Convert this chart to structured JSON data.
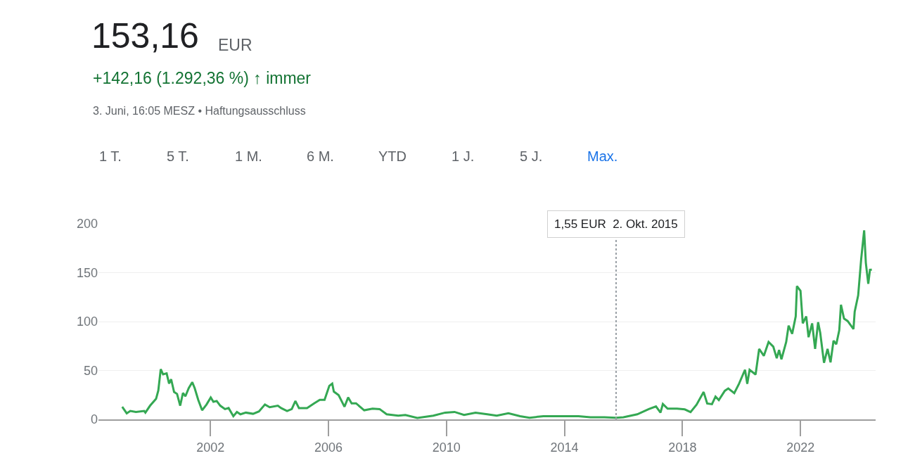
{
  "chart_data": {
    "type": "line",
    "title": "153,16",
    "annotations": [
      "EUR",
      "+142,16 (1.292,36 %) ↑ immer",
      "3. Juni, 16:05 MESZ • Haftungsausschluss",
      "1 T.",
      "5 T.",
      "1 M.",
      "6 M.",
      "YTD",
      "1 J.",
      "5 J.",
      "Max.",
      "1,55 EUR  2. Okt. 2015"
    ],
    "x": [
      "1999-01-05",
      "1999-03-02",
      "1999-04-15",
      "1999-06-24",
      "1999-10-04",
      "1999-10-19",
      "1999-12-16",
      "2000-02-28",
      "2000-03-27",
      "2000-04-26",
      "2000-05-25",
      "2000-07-08",
      "2000-08-07",
      "2000-09-02",
      "2000-10-08",
      "2000-11-14",
      "2000-12-23",
      "2001-01-26",
      "2001-02-25",
      "2001-04-08",
      "2001-05-21",
      "2001-06-20",
      "2001-08-03",
      "2001-09-20",
      "2001-11-14",
      "2002-01-05",
      "2002-02-07",
      "2002-03-20",
      "2002-05-03",
      "2002-07-01",
      "2002-08-14",
      "2002-10-12",
      "2002-11-25",
      "2003-01-08",
      "2003-03-16",
      "2003-06-13",
      "2003-08-25",
      "2003-11-07",
      "2004-01-05",
      "2004-04-15",
      "2004-05-25",
      "2004-08-07",
      "2004-10-04",
      "2004-11-18",
      "2005-01-01",
      "2005-04-11",
      "2005-07-08",
      "2005-09-16",
      "2005-11-14",
      "2006-01-12",
      "2006-02-17",
      "2006-03-09",
      "2006-05-07",
      "2006-07-19",
      "2006-09-02",
      "2006-10-15",
      "2006-12-09",
      "2007-03-20",
      "2007-07-01",
      "2007-09-27",
      "2007-12-23",
      "2008-05-14",
      "2008-08-10",
      "2009-01-05",
      "2009-07-22",
      "2009-12-16",
      "2010-04-11",
      "2010-08-07",
      "2010-12-27",
      "2011-05-21",
      "2011-09-16",
      "2012-02-07",
      "2012-07-01",
      "2012-10-26",
      "2013-04-15",
      "2013-12-05",
      "2014-06-24",
      "2014-11-18",
      "2015-05-10",
      "2015-10-02",
      "2016-01-01",
      "2016-06-20",
      "2016-11-10",
      "2017-02-07",
      "2017-04-04",
      "2017-05-03",
      "2017-07-01",
      "2017-10-26",
      "2018-01-29",
      "2018-04-11",
      "2018-06-24",
      "2018-09-20",
      "2018-11-03",
      "2019-01-01",
      "2019-02-14",
      "2019-03-27",
      "2019-06-09",
      "2019-07-22",
      "2019-10-04",
      "2019-12-02",
      "2020-02-14",
      "2020-03-13",
      "2020-04-11",
      "2020-06-24",
      "2020-08-07",
      "2020-10-04",
      "2020-12-02",
      "2021-01-29",
      "2021-03-13",
      "2021-04-11",
      "2021-05-10",
      "2021-07-08",
      "2021-08-07",
      "2021-09-20",
      "2021-11-03",
      "2021-11-18",
      "2022-01-01",
      "2022-01-29",
      "2022-03-13",
      "2022-04-11",
      "2022-05-25",
      "2022-07-01",
      "2022-08-07",
      "2022-09-02",
      "2022-10-19",
      "2022-12-02",
      "2023-01-08",
      "2023-02-14",
      "2023-03-20",
      "2023-04-26",
      "2023-05-17",
      "2023-06-24",
      "2023-08-07",
      "2023-10-19",
      "2023-11-03",
      "2023-12-16",
      "2024-01-22",
      "2024-02-28",
      "2024-03-20",
      "2024-04-19",
      "2024-05-10",
      "2024-06-02"
    ],
    "series": [
      {
        "color": "#34a853",
        "values": [
          12.9,
          6.2,
          8.6,
          7.6,
          8.6,
          6.9,
          14,
          21,
          29.5,
          51.4,
          46,
          47,
          36.6,
          41,
          28,
          26,
          14,
          27,
          23.6,
          32,
          38,
          32,
          20,
          9.3,
          15.2,
          22.4,
          18,
          18.8,
          14,
          10.5,
          11.6,
          3.3,
          7.6,
          5.2,
          6.9,
          5.7,
          8.1,
          15.2,
          12.4,
          14,
          11.6,
          8.6,
          10.5,
          18.8,
          11.6,
          11.6,
          16.4,
          20,
          20,
          34.3,
          36.6,
          28.4,
          24.8,
          12.9,
          22.4,
          16.4,
          16.4,
          9.3,
          10.9,
          10.5,
          5.2,
          3.8,
          4.5,
          1.4,
          3.8,
          6.9,
          7.6,
          4.5,
          6.9,
          5.2,
          3.8,
          6.2,
          3.3,
          1.7,
          3.3,
          3.3,
          3.3,
          2.1,
          2.1,
          1.55,
          2.1,
          5.2,
          10.5,
          13.3,
          6.9,
          15.7,
          10.9,
          10.9,
          10.2,
          7.4,
          15,
          28,
          16.2,
          15.5,
          23.3,
          19.7,
          29.2,
          31.6,
          26.9,
          36.4,
          50.7,
          36.4,
          50.7,
          45.9,
          72,
          65,
          79.2,
          74.4,
          62.5,
          70.9,
          61.4,
          79.2,
          95.8,
          87.5,
          105.3,
          136.3,
          131.5,
          98.2,
          105.3,
          84,
          98.2,
          72,
          99.4,
          88.7,
          57.8,
          72,
          58.3,
          80.4,
          76.8,
          91.1,
          117.2,
          103,
          100.6,
          92.3,
          110.1,
          126.7,
          163.6,
          193.3,
          160,
          138.6,
          152.9,
          153
        ]
      }
    ],
    "xlim": [
      "1998-03-17",
      "2024-07-19"
    ],
    "xticks": [
      "2002",
      "2006",
      "2010",
      "2014",
      "2018",
      "2022"
    ],
    "ylim": [
      0,
      200
    ],
    "yticks": [
      0,
      50,
      100,
      150,
      200
    ],
    "ref_lines": [
      {
        "axis": "x",
        "value": "2015-10-02",
        "color": "#9aa0a6",
        "line_style": "dotted"
      }
    ],
    "grid": "y",
    "marker": "none",
    "line_style": "solid"
  }
}
